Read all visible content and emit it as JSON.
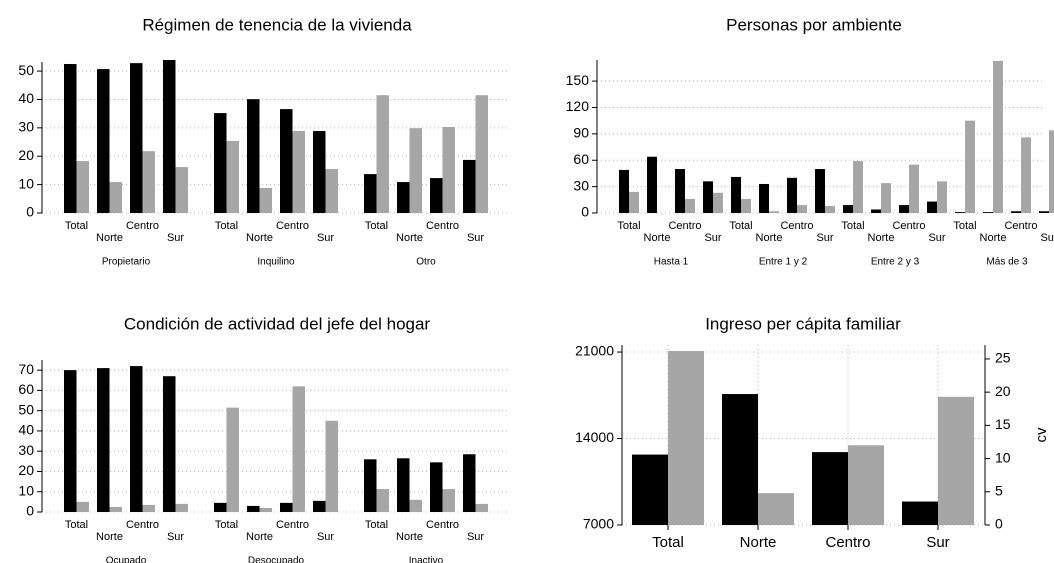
{
  "chart_data": [
    {
      "type": "bar",
      "title": "Régimen de tenencia de la vivienda",
      "groups": [
        "Propietario",
        "Inquilino",
        "Otro"
      ],
      "categories": [
        "Total",
        "Norte",
        "Centro",
        "Sur"
      ],
      "series": [
        {
          "color": "#000000",
          "values": [
            [
              52.5,
              50.7,
              52.8,
              53.9
            ],
            [
              35.2,
              40.1,
              36.6,
              28.9
            ],
            [
              13.7,
              10.9,
              12.3,
              18.7
            ]
          ]
        },
        {
          "color": "#a6a6a6",
          "values": [
            [
              18.3,
              10.9,
              21.8,
              16.2
            ],
            [
              25.4,
              8.8,
              28.9,
              15.5
            ],
            [
              41.5,
              29.9,
              30.3,
              41.5
            ]
          ]
        }
      ],
      "ylim": [
        0,
        53.2
      ],
      "yticks": [
        0,
        10,
        20,
        30,
        40,
        50
      ],
      "grid": true
    },
    {
      "type": "bar",
      "title": "Personas por ambiente",
      "groups": [
        "Hasta 1",
        "Entre 1 y 2",
        "Entre 2 y 3",
        "Más de 3"
      ],
      "categories": [
        "Total",
        "Norte",
        "Centro",
        "Sur"
      ],
      "series": [
        {
          "color": "#000000",
          "values": [
            [
              49,
              64,
              50,
              36
            ],
            [
              41,
              33,
              40,
              50
            ],
            [
              9,
              4,
              9,
              13
            ],
            [
              1,
              1,
              2,
              2
            ]
          ]
        },
        {
          "color": "#a6a6a6",
          "values": [
            [
              24,
              0,
              16,
              23
            ],
            [
              16,
              2,
              9,
              8
            ],
            [
              59,
              34,
              55,
              36
            ],
            [
              105,
              173,
              86,
              94
            ]
          ]
        }
      ],
      "ylim": [
        0,
        174
      ],
      "yticks": [
        0,
        30,
        60,
        90,
        120,
        150
      ],
      "grid": true
    },
    {
      "type": "bar",
      "title": "Condición de actividad del jefe del hogar",
      "groups": [
        "Ocupado",
        "Desocupado",
        "Inactivo"
      ],
      "categories": [
        "Total",
        "Norte",
        "Centro",
        "Sur"
      ],
      "series": [
        {
          "color": "#000000",
          "values": [
            [
              70,
              71,
              72,
              67
            ],
            [
              4.5,
              3,
              4.5,
              5.5
            ],
            [
              26,
              26.5,
              24.5,
              28.5
            ]
          ]
        },
        {
          "color": "#a6a6a6",
          "values": [
            [
              5,
              2.5,
              3.5,
              4
            ],
            [
              51.5,
              2,
              62,
              45
            ],
            [
              11.3,
              6,
              11.3,
              4
            ]
          ]
        }
      ],
      "ylim": [
        0,
        75
      ],
      "yticks": [
        0,
        10,
        20,
        30,
        40,
        50,
        60,
        70
      ],
      "grid": true
    },
    {
      "type": "bar",
      "title": "Ingreso per cápita familiar",
      "categories": [
        "Total",
        "Norte",
        "Centro",
        "Sur"
      ],
      "series": [
        {
          "color": "#000000",
          "values": [
            12700,
            17600,
            12900,
            8900
          ]
        },
        {
          "color": "#a6a6a6",
          "values": [
            26.2,
            4.8,
            12,
            19.3
          ],
          "axis": "y2"
        }
      ],
      "ylim": [
        7000,
        21570
      ],
      "yticks": [
        7000,
        14000,
        21000
      ],
      "y2label": "cv",
      "y2lim": [
        0,
        27.1
      ],
      "y2ticks": [
        0,
        5,
        10,
        15,
        20,
        25
      ],
      "grid": true,
      "xgrid": true
    }
  ]
}
